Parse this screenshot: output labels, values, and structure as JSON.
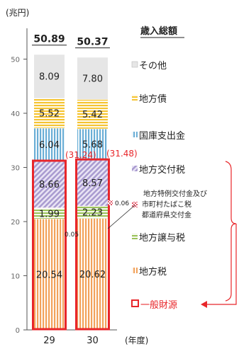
{
  "chart_data": {
    "type": "bar",
    "stacked": true,
    "unit_label": "(兆円)",
    "title": "歳入総額",
    "xlabel": "(年度)",
    "categories": [
      "29",
      "30"
    ],
    "totals": [
      "50.89",
      "50.37"
    ],
    "ylim": [
      0,
      55
    ],
    "yticks": [
      "0",
      "10",
      "20",
      "30",
      "40",
      "50"
    ],
    "grid": false,
    "legend_position": "right",
    "series": [
      {
        "name": "地方税",
        "values": [
          20.54,
          20.62
        ],
        "labels": [
          "20.54",
          "20.62"
        ],
        "color": "#f2a25a",
        "pattern": "vertical-stripes"
      },
      {
        "name": "地方譲与税",
        "values": [
          1.99,
          2.23
        ],
        "labels": [
          "1.99",
          "2.23"
        ],
        "color": "#9bc25a",
        "pattern": "horizontal-stripes"
      },
      {
        "name": "地方特例交付金及び市町村たばこ税都道府県交付金",
        "values": [
          0.05,
          0.06
        ],
        "labels": [
          "0.05",
          "0.06"
        ],
        "color": "#e05a6a",
        "pattern": "checker"
      },
      {
        "name": "地方交付税",
        "values": [
          8.66,
          8.57
        ],
        "labels": [
          "8.66",
          "8.57"
        ],
        "color": "#a99bd0",
        "pattern": "diagonal"
      },
      {
        "name": "国庫支出金",
        "values": [
          6.04,
          5.68
        ],
        "labels": [
          "6.04",
          "5.68"
        ],
        "color": "#6aaed6",
        "pattern": "vertical-stripes"
      },
      {
        "name": "地方債",
        "values": [
          5.52,
          5.42
        ],
        "labels": [
          "5.52",
          "5.42"
        ],
        "color": "#f5c431",
        "pattern": "horizontal-stripes"
      },
      {
        "name": "その他",
        "values": [
          8.09,
          7.8
        ],
        "labels": [
          "8.09",
          "7.80"
        ],
        "color": "#e6e6e6",
        "pattern": "solid"
      }
    ],
    "general_revenue": {
      "name": "一般財源",
      "values": [
        31.24,
        31.48
      ],
      "labels": [
        "(31.24)",
        "(31.48)"
      ],
      "color": "#e8262a"
    }
  }
}
